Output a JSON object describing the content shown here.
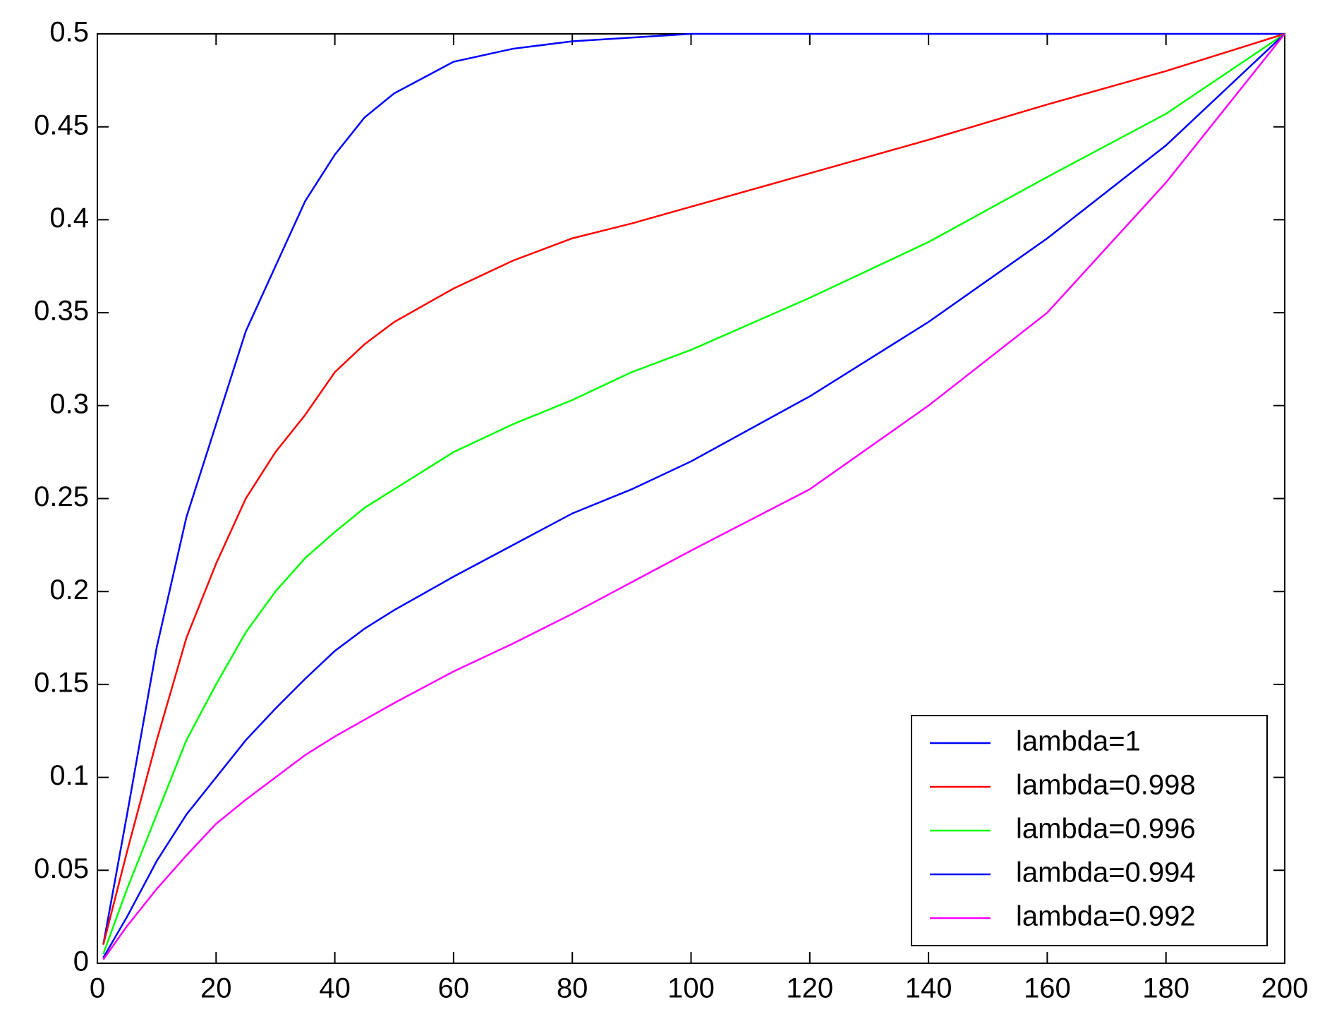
{
  "chart_data": {
    "type": "line",
    "x": [
      1,
      5,
      10,
      15,
      20,
      25,
      30,
      35,
      40,
      45,
      50,
      60,
      70,
      80,
      90,
      100,
      120,
      140,
      160,
      180,
      200
    ],
    "series": [
      {
        "name": "lambda=1",
        "color": "#0000ff",
        "values": [
          0.01,
          0.08,
          0.17,
          0.24,
          0.29,
          0.34,
          0.375,
          0.41,
          0.435,
          0.455,
          0.468,
          0.485,
          0.492,
          0.496,
          0.498,
          0.5,
          0.5,
          0.5,
          0.5,
          0.5,
          0.5
        ]
      },
      {
        "name": "lambda=0.998",
        "color": "#ff0000",
        "values": [
          0.01,
          0.06,
          0.12,
          0.175,
          0.215,
          0.25,
          0.275,
          0.295,
          0.318,
          0.333,
          0.345,
          0.363,
          0.378,
          0.39,
          0.398,
          0.407,
          0.425,
          0.443,
          0.462,
          0.48,
          0.5
        ]
      },
      {
        "name": "lambda=0.996",
        "color": "#00ff00",
        "values": [
          0.005,
          0.04,
          0.08,
          0.12,
          0.15,
          0.178,
          0.2,
          0.218,
          0.232,
          0.245,
          0.255,
          0.275,
          0.29,
          0.303,
          0.318,
          0.33,
          0.358,
          0.388,
          0.423,
          0.457,
          0.5
        ]
      },
      {
        "name": "lambda=0.994",
        "color": "#0000ff",
        "values": [
          0.003,
          0.025,
          0.055,
          0.08,
          0.1,
          0.12,
          0.137,
          0.153,
          0.168,
          0.18,
          0.19,
          0.208,
          0.225,
          0.242,
          0.255,
          0.27,
          0.305,
          0.345,
          0.39,
          0.44,
          0.5
        ]
      },
      {
        "name": "lambda=0.992",
        "color": "#ff00ff",
        "values": [
          0.002,
          0.02,
          0.04,
          0.058,
          0.075,
          0.088,
          0.1,
          0.112,
          0.122,
          0.131,
          0.14,
          0.157,
          0.172,
          0.188,
          0.205,
          0.222,
          0.255,
          0.3,
          0.35,
          0.42,
          0.5
        ]
      }
    ],
    "xlim": [
      0,
      200
    ],
    "xticks": [
      0,
      20,
      40,
      60,
      80,
      100,
      120,
      140,
      160,
      180,
      200
    ],
    "ylim": [
      0,
      0.5
    ],
    "yticks": [
      0,
      0.05,
      0.1,
      0.15,
      0.2,
      0.25,
      0.3,
      0.35,
      0.4,
      0.45,
      0.5
    ],
    "legend": "lower right",
    "grid": false
  }
}
